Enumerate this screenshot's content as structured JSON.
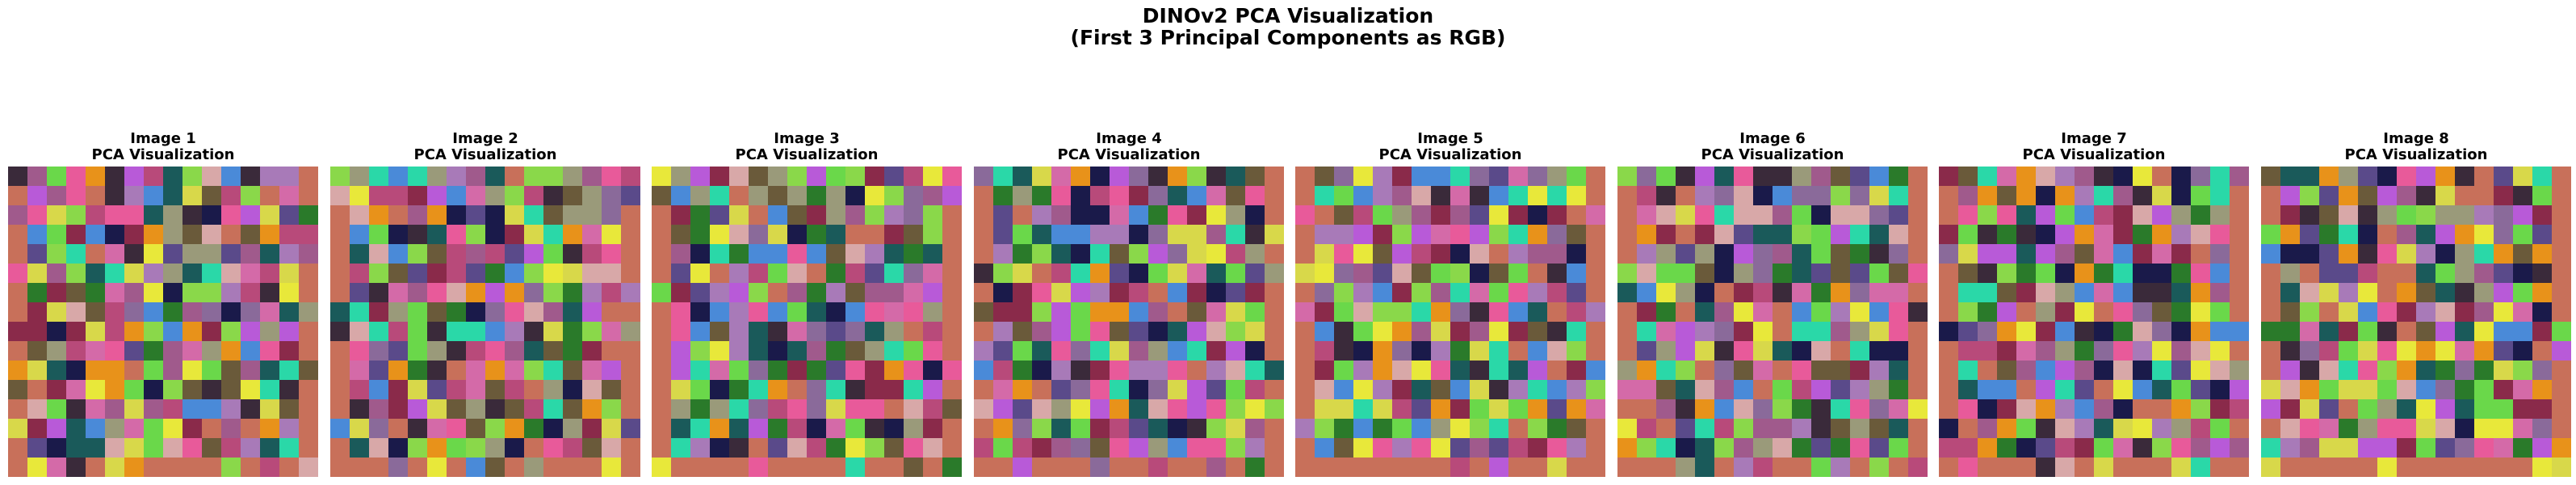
{
  "figure": {
    "title_line1": "DINOv2 PCA Visualization",
    "title_line2": "(First 3 Principal Components as RGB)"
  },
  "panels": [
    {
      "title_line1": "Image 1",
      "title_line2": "PCA Visualization",
      "seed": 11
    },
    {
      "title_line1": "Image 2",
      "title_line2": "PCA Visualization",
      "seed": 23
    },
    {
      "title_line1": "Image 3",
      "title_line2": "PCA Visualization",
      "seed": 37
    },
    {
      "title_line1": "Image 4",
      "title_line2": "PCA Visualization",
      "seed": 41
    },
    {
      "title_line1": "Image 5",
      "title_line2": "PCA Visualization",
      "seed": 53
    },
    {
      "title_line1": "Image 6",
      "title_line2": "PCA Visualization",
      "seed": 67
    },
    {
      "title_line1": "Image 7",
      "title_line2": "PCA Visualization",
      "seed": 79
    },
    {
      "title_line1": "Image 8",
      "title_line2": "PCA Visualization",
      "seed": 97
    }
  ],
  "palette": [
    "#c8705a",
    "#d46aa8",
    "#a05a8c",
    "#8a6a9a",
    "#e8921a",
    "#6ad84a",
    "#2a7a2a",
    "#3a2a3a",
    "#b84a7a",
    "#8a2a4a",
    "#a87ab8",
    "#5a4a8a",
    "#4a8ad8",
    "#2ad8a8",
    "#1a5a5a",
    "#d8d84a",
    "#9a9a7a",
    "#6a5a3a",
    "#e85a9a",
    "#b85ad8",
    "#8ad84a",
    "#1a1a4a",
    "#d8a8a8",
    "#e8e83a"
  ],
  "grid_cells": 16
}
